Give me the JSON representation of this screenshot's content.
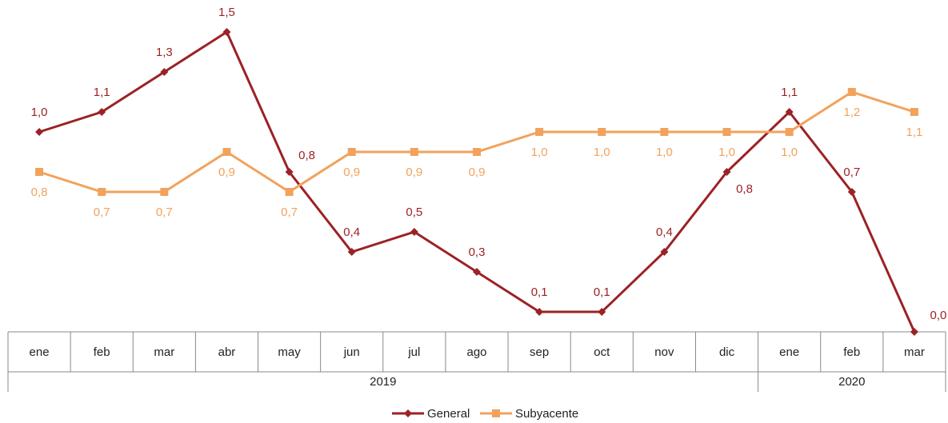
{
  "chart_data": {
    "type": "line",
    "groups": [
      {
        "label": "2019",
        "categories": [
          "ene",
          "feb",
          "mar",
          "abr",
          "may",
          "jun",
          "jul",
          "ago",
          "sep",
          "oct",
          "nov",
          "dic"
        ]
      },
      {
        "label": "2020",
        "categories": [
          "ene",
          "feb",
          "mar"
        ]
      }
    ],
    "ylim": [
      0,
      1.6
    ],
    "series": [
      {
        "name": "General",
        "color": "#9b2226",
        "marker": "diamond",
        "values": [
          1.0,
          1.1,
          1.3,
          1.5,
          0.8,
          0.4,
          0.5,
          0.3,
          0.1,
          0.1,
          0.4,
          0.8,
          1.1,
          0.7,
          0.0
        ],
        "value_labels": [
          "1,0",
          "1,1",
          "1,3",
          "1,5",
          "0,8",
          "0,4",
          "0,5",
          "0,3",
          "0,1",
          "0,1",
          "0,4",
          "0,8",
          "1,1",
          "0,7",
          "0,0"
        ]
      },
      {
        "name": "Subyacente",
        "color": "#f2a25c",
        "marker": "square",
        "values": [
          0.8,
          0.7,
          0.7,
          0.9,
          0.7,
          0.9,
          0.9,
          0.9,
          1.0,
          1.0,
          1.0,
          1.0,
          1.0,
          1.2,
          1.1
        ],
        "value_labels": [
          "0,8",
          "0,7",
          "0,7",
          "0,9",
          "0,7",
          "0,9",
          "0,9",
          "0,9",
          "1,0",
          "1,0",
          "1,0",
          "1,0",
          "1,0",
          "1,2",
          "1,1"
        ]
      }
    ],
    "legend": "bottom"
  }
}
